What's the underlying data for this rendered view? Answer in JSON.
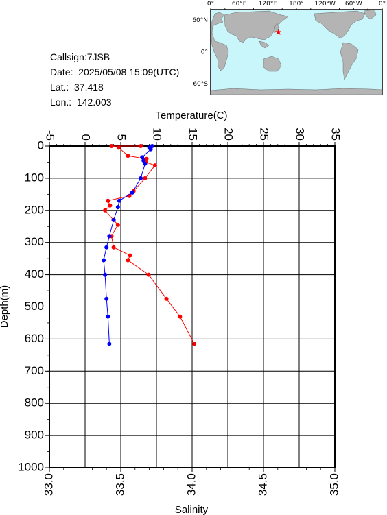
{
  "station": {
    "callsign": "Callsign:7JSB",
    "date": "Date:  2025/05/08 15:09(UTC)",
    "lat": "Lat.:  37.418",
    "lon": "Lon.:  142.003"
  },
  "map": {
    "top_labels": [
      "0°",
      "60°E",
      "120°E",
      "180°",
      "120°W",
      "60°W",
      "0°"
    ],
    "side_labels": [
      "60°N",
      "0°",
      "60°S"
    ],
    "ocean_color": "#c8f6fb",
    "land_color": "#b4b4b4",
    "marker": {
      "lon": 142.003,
      "lat": 37.418,
      "color": "#ff0000",
      "icon": "star-marker"
    }
  },
  "chart_data": {
    "type": "line",
    "x_top_label": "Temperature(C)",
    "x_bottom_label": "Salinity",
    "ylabel": "Depth(m)",
    "temperature_lim": [
      -5,
      35
    ],
    "temperature_ticks": [
      "-5",
      "0",
      "5",
      "10",
      "15",
      "20",
      "25",
      "30",
      "35"
    ],
    "salinity_lim": [
      33.0,
      35.0
    ],
    "salinity_ticks": [
      "33.0",
      "33.5",
      "34.0",
      "34.5",
      "35.0"
    ],
    "depth_lim": [
      0,
      1000
    ],
    "depth_ticks": [
      "0",
      "100",
      "200",
      "300",
      "400",
      "500",
      "600",
      "700",
      "800",
      "900",
      "1000"
    ],
    "grid": true,
    "series": [
      {
        "variable": "temperature",
        "color": "#ff0000",
        "points": [
          {
            "depth": 0,
            "value": 7.8
          },
          {
            "depth": 0,
            "value": 3.7
          },
          {
            "depth": 5,
            "value": 4.7
          },
          {
            "depth": 30,
            "value": 6.0
          },
          {
            "depth": 40,
            "value": 8.6
          },
          {
            "depth": 50,
            "value": 8.5
          },
          {
            "depth": 60,
            "value": 9.8
          },
          {
            "depth": 100,
            "value": 8.4
          },
          {
            "depth": 140,
            "value": 6.8
          },
          {
            "depth": 155,
            "value": 6.2
          },
          {
            "depth": 170,
            "value": 3.2
          },
          {
            "depth": 185,
            "value": 3.5
          },
          {
            "depth": 200,
            "value": 2.8
          },
          {
            "depth": 230,
            "value": 4.0
          },
          {
            "depth": 245,
            "value": 4.6
          },
          {
            "depth": 280,
            "value": 3.7
          },
          {
            "depth": 315,
            "value": 4.0
          },
          {
            "depth": 340,
            "value": 6.3
          },
          {
            "depth": 355,
            "value": 6.0
          },
          {
            "depth": 400,
            "value": 8.9
          },
          {
            "depth": 475,
            "value": 11.4
          },
          {
            "depth": 530,
            "value": 13.3
          },
          {
            "depth": 615,
            "value": 15.3
          }
        ]
      },
      {
        "variable": "salinity",
        "color": "#0000ff",
        "points": [
          {
            "depth": 0,
            "value": 33.72
          },
          {
            "depth": 5,
            "value": 33.7
          },
          {
            "depth": 10,
            "value": 33.71
          },
          {
            "depth": 35,
            "value": 33.65
          },
          {
            "depth": 45,
            "value": 33.66
          },
          {
            "depth": 55,
            "value": 33.67
          },
          {
            "depth": 100,
            "value": 33.64
          },
          {
            "depth": 145,
            "value": 33.58
          },
          {
            "depth": 170,
            "value": 33.49
          },
          {
            "depth": 190,
            "value": 33.48
          },
          {
            "depth": 230,
            "value": 33.45
          },
          {
            "depth": 280,
            "value": 33.42
          },
          {
            "depth": 315,
            "value": 33.4
          },
          {
            "depth": 355,
            "value": 33.38
          },
          {
            "depth": 400,
            "value": 33.39
          },
          {
            "depth": 475,
            "value": 33.4
          },
          {
            "depth": 530,
            "value": 33.41
          },
          {
            "depth": 615,
            "value": 33.42
          }
        ]
      }
    ]
  }
}
